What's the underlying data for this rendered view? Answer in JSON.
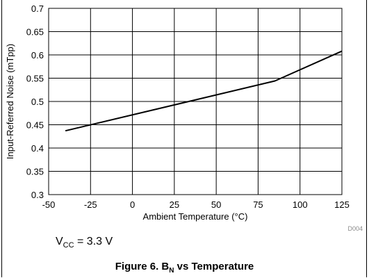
{
  "chart_data": {
    "type": "line",
    "ylabel": "Input-Referred Noise (mTpp)",
    "xlabel": "Ambient Temperature (°C)",
    "xlim": [
      -50,
      125
    ],
    "ylim": [
      0.3,
      0.7
    ],
    "x_ticks": [
      "-50",
      "-25",
      "0",
      "25",
      "50",
      "75",
      "100",
      "125"
    ],
    "y_ticks": [
      "0.3",
      "0.35",
      "0.4",
      "0.45",
      "0.5",
      "0.55",
      "0.6",
      "0.65",
      "0.7"
    ],
    "grid": true,
    "series": [
      {
        "x": [
          -40,
          85,
          125
        ],
        "y": [
          0.437,
          0.544,
          0.608
        ]
      }
    ],
    "code_label": "D004"
  },
  "annotation": {
    "prefix": "V",
    "subscript": "CC",
    "suffix": " = 3.3 V"
  },
  "caption": {
    "prefix": "Figure 6. B",
    "subscript": "N",
    "suffix": " vs Temperature"
  }
}
